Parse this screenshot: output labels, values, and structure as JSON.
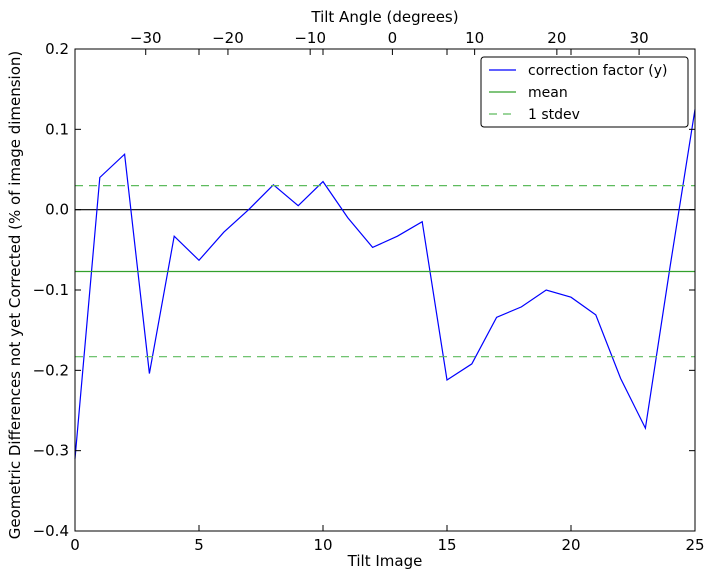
{
  "chart_data": {
    "type": "line",
    "xlabel": "Tilt Image",
    "ylabel": "Geometric Differences not yet Corrected (% of image dimension)",
    "top_xlabel": "Tilt Angle (degrees)",
    "xlim": [
      0,
      25
    ],
    "ylim": [
      -0.4,
      0.2
    ],
    "top_xlim": [
      -38.6,
      36.8
    ],
    "x_ticks": [
      0,
      5,
      10,
      15,
      20,
      25
    ],
    "x_tick_labels": [
      "0",
      "5",
      "10",
      "15",
      "20",
      "25"
    ],
    "y_ticks": [
      -0.4,
      -0.3,
      -0.2,
      -0.1,
      0.0,
      0.1,
      0.2
    ],
    "y_tick_labels": [
      "−0.4",
      "−0.3",
      "−0.2",
      "−0.1",
      "0.0",
      "0.1",
      "0.2"
    ],
    "top_ticks": [
      -30,
      -20,
      -10,
      0,
      10,
      20,
      30
    ],
    "top_tick_labels": [
      "−30",
      "−20",
      "−10",
      "0",
      "10",
      "20",
      "30"
    ],
    "grid": false,
    "legend_position": "top-right",
    "series": [
      {
        "name": "correction factor (y)",
        "color": "#0000ff",
        "style": "solid",
        "x": [
          0,
          1,
          2,
          3,
          4,
          5,
          6,
          7,
          8,
          9,
          10,
          11,
          12,
          13,
          14,
          15,
          16,
          17,
          18,
          19,
          20,
          21,
          22,
          23,
          24,
          25
        ],
        "values": [
          -0.31,
          0.04,
          0.069,
          -0.204,
          -0.033,
          -0.063,
          -0.028,
          0.0,
          0.031,
          0.005,
          0.035,
          -0.01,
          -0.047,
          -0.033,
          -0.015,
          -0.212,
          -0.192,
          -0.134,
          -0.121,
          -0.1,
          -0.109,
          -0.131,
          -0.21,
          -0.272,
          -0.07,
          0.125
        ]
      },
      {
        "name": "mean",
        "color": "#33a02c",
        "style": "solid",
        "x": [
          0,
          25
        ],
        "values": [
          -0.077,
          -0.077
        ]
      },
      {
        "name": "1 stdev",
        "color": "#5dbb5d",
        "style": "dashed",
        "x": [
          0,
          25
        ],
        "values": [
          0.03,
          0.03
        ],
        "lower": [
          -0.183,
          -0.183
        ]
      }
    ],
    "zero_line": {
      "value": 0.0,
      "color": "#000000"
    }
  }
}
